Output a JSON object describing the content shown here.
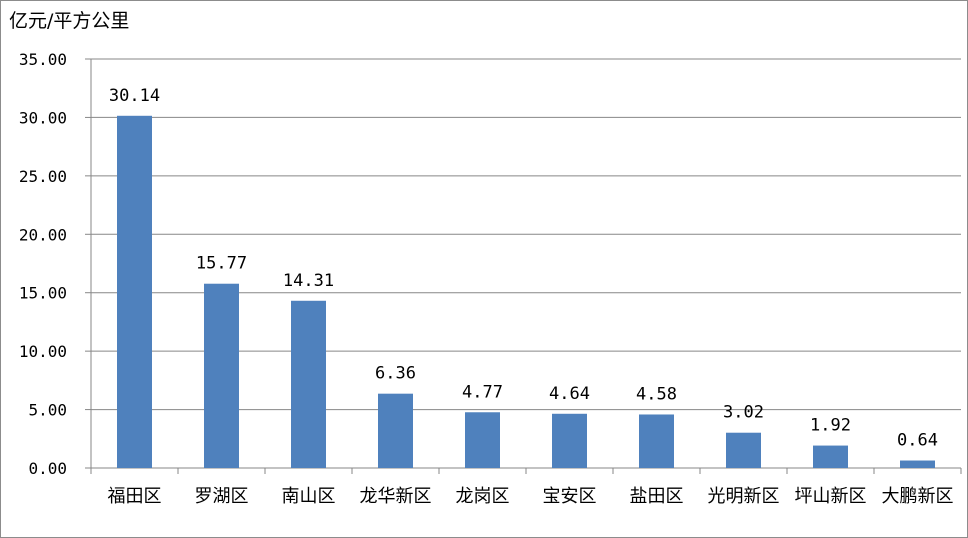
{
  "chart_data": {
    "type": "bar",
    "ylabel": "亿元/平方公里",
    "categories": [
      "福田区",
      "罗湖区",
      "南山区",
      "龙华新区",
      "龙岗区",
      "宝安区",
      "盐田区",
      "光明新区",
      "坪山新区",
      "大鹏新区"
    ],
    "values": [
      30.14,
      15.77,
      14.31,
      6.36,
      4.77,
      4.64,
      4.58,
      3.02,
      1.92,
      0.64
    ],
    "value_labels": [
      "30.14",
      "15.77",
      "14.31",
      "6.36",
      "4.77",
      "4.64",
      "4.58",
      "3.02",
      "1.92",
      "0.64"
    ],
    "yticks": [
      "0.00",
      "5.00",
      "10.00",
      "15.00",
      "20.00",
      "25.00",
      "30.00",
      "35.00"
    ],
    "ylim": [
      0,
      35
    ],
    "grid": true,
    "legend": "none",
    "bar_color": "#4f81bd"
  }
}
